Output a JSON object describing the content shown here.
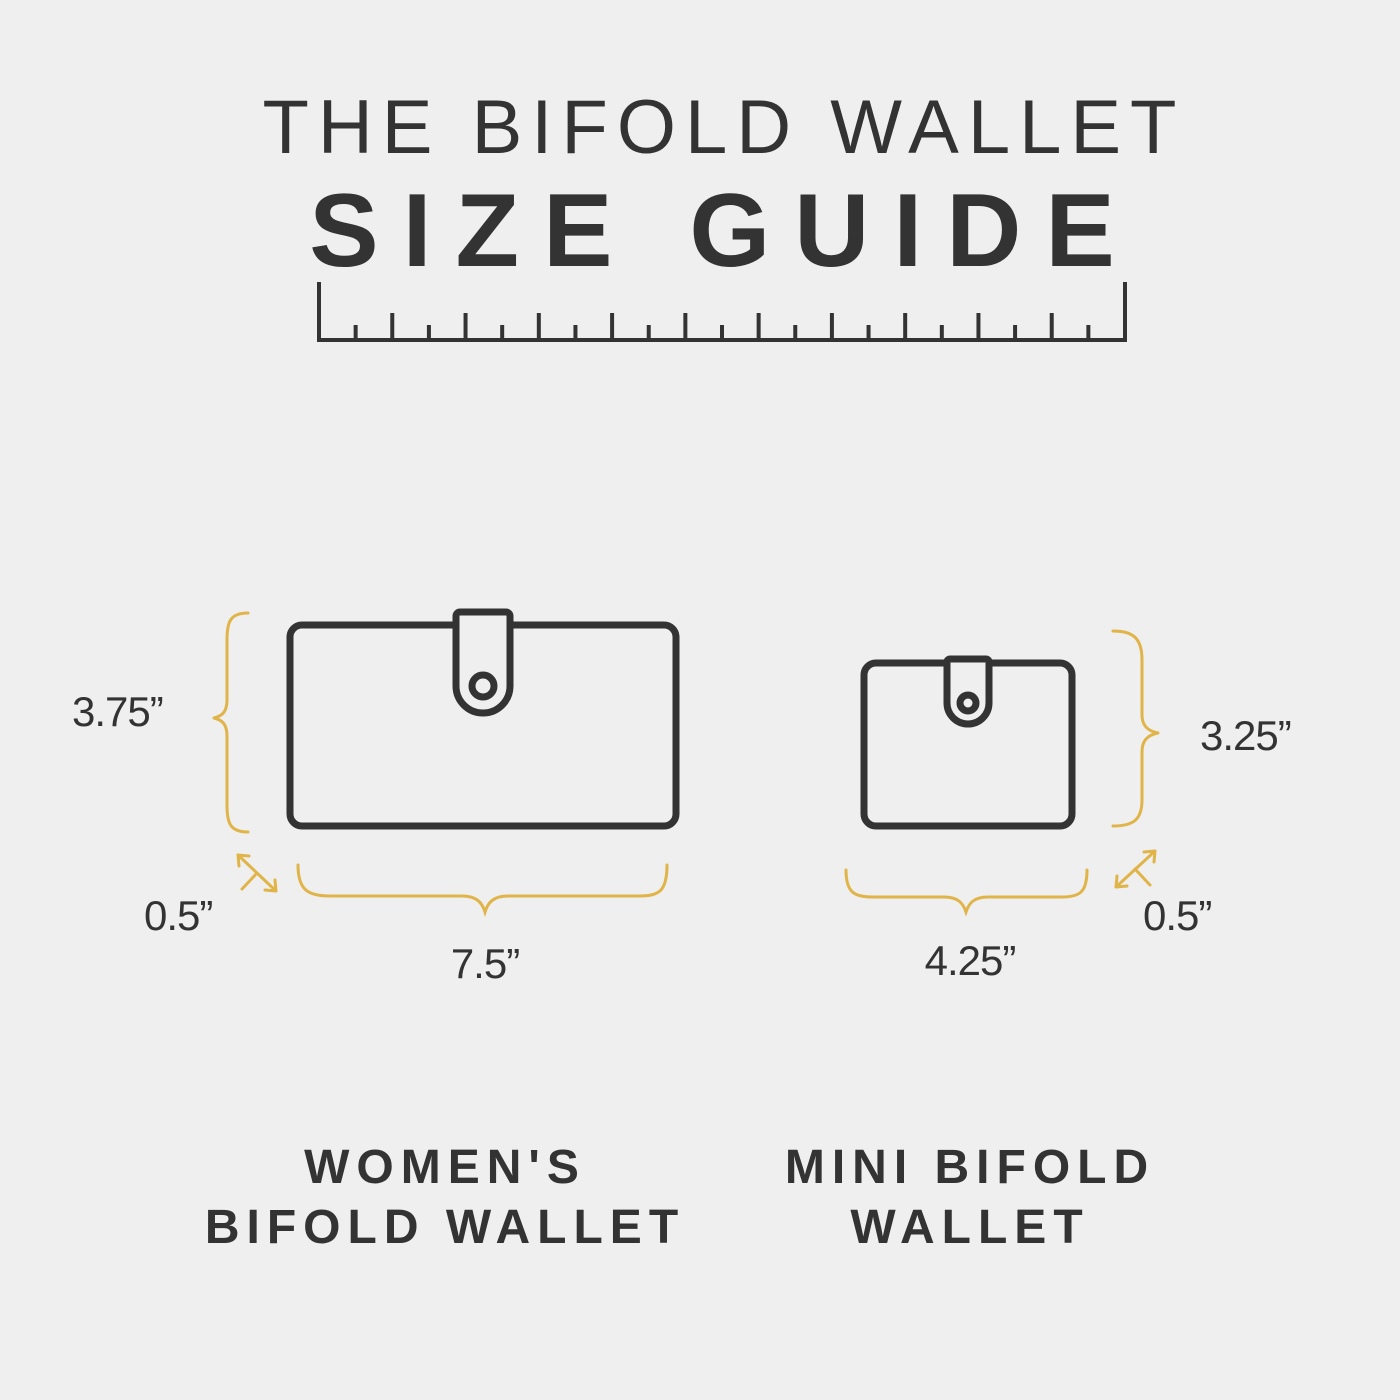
{
  "title": {
    "line1": "THE BIFOLD WALLET",
    "line2": "SIZE GUIDE"
  },
  "colors": {
    "background": "#efefef",
    "ink": "#333333",
    "accent": "#e0b448"
  },
  "wallets": [
    {
      "name_line1": "WOMEN'S",
      "name_line2": "BIFOLD WALLET",
      "height": "3.75”",
      "width": "7.5”",
      "depth": "0.5”"
    },
    {
      "name_line1": "MINI BIFOLD",
      "name_line2": "WALLET",
      "height": "3.25”",
      "width": "4.25”",
      "depth": "0.5”"
    }
  ]
}
